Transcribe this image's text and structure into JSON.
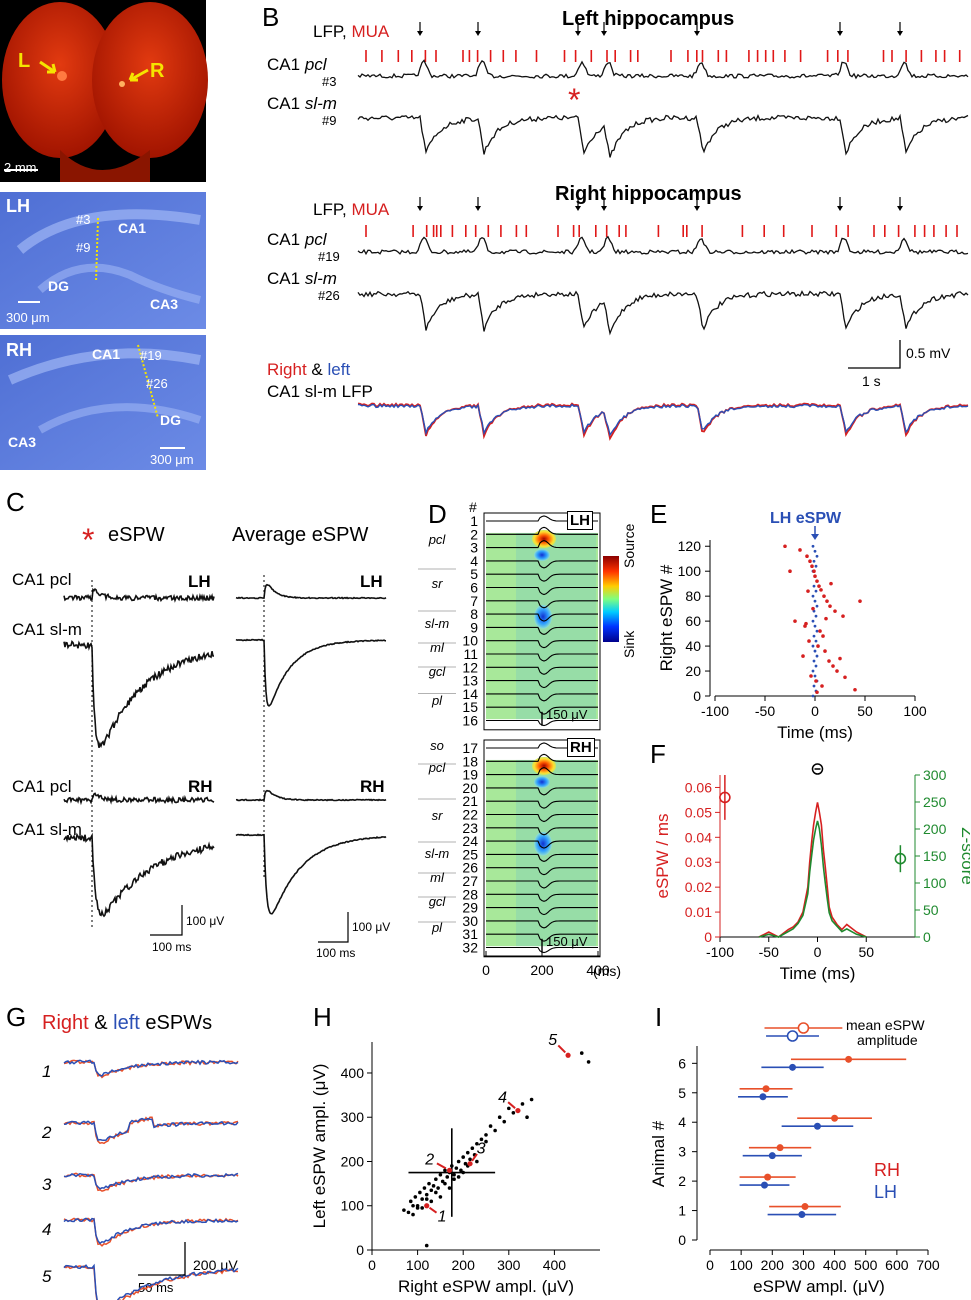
{
  "panel_letters": {
    "A": "A",
    "B": "B",
    "C": "C",
    "D": "D",
    "E": "E",
    "F": "F",
    "G": "G",
    "H": "H",
    "I": "I"
  },
  "panelA": {
    "brain_scalebar": "2 mm",
    "left_marker": "L",
    "right_marker": "R",
    "lh": {
      "title": "LH",
      "site1": "#3",
      "site2": "#9",
      "ca1": "CA1",
      "dg": "DG",
      "ca3": "CA3",
      "scalebar": "300 μm"
    },
    "rh": {
      "title": "RH",
      "ca1": "CA1",
      "site1": "#19",
      "site2": "#26",
      "dg": "DG",
      "ca3": "CA3",
      "scalebar": "300 μm"
    }
  },
  "panelB": {
    "left_title": "Left hippocampus",
    "right_title": "Right hippocampus",
    "lfp": "LFP,",
    "mua": "MUA",
    "ca1": "CA1",
    "pcl": "pcl",
    "slm": "sl-m",
    "left_ch_pcl": "#3",
    "left_ch_slm": "#9",
    "right_ch_pcl": "#19",
    "right_ch_slm": "#26",
    "scale_v": "0.5 mV",
    "scale_t": "1 s",
    "overlay_right": "Right",
    "overlay_amp": "&",
    "overlay_left": "left",
    "overlay_line2": "CA1 sl-m LFP",
    "asterisk": "*"
  },
  "panelC": {
    "asterisk": "*",
    "title_left": "eSPW",
    "title_right": "Average eSPW",
    "ca1_pcl": "CA1 pcl",
    "ca1_slm": "CA1 sl-m",
    "lh": "LH",
    "rh": "RH",
    "scale_v": "100 μV",
    "scale_t": "100 ms"
  },
  "panelD": {
    "hash": "#",
    "lh": "LH",
    "rh": "RH",
    "layers_lh": [
      "pcl",
      "sr",
      "sl-m",
      "ml",
      "gcl",
      "pl"
    ],
    "layers_rh": [
      "so",
      "pcl",
      "sr",
      "sl-m",
      "ml",
      "gcl",
      "pl"
    ],
    "channels_lh": [
      "1",
      "2",
      "3",
      "4",
      "5",
      "6",
      "7",
      "8",
      "9",
      "10",
      "11",
      "12",
      "13",
      "14",
      "15",
      "16"
    ],
    "channels_rh": [
      "17",
      "18",
      "19",
      "20",
      "21",
      "22",
      "23",
      "24",
      "25",
      "26",
      "27",
      "28",
      "29",
      "30",
      "31",
      "32"
    ],
    "colorbar_top": "Source",
    "colorbar_bottom": "Sink",
    "scalebar": "150 μV",
    "x_ticks": [
      "0",
      "200",
      "400"
    ],
    "x_unit": "(ms)"
  },
  "panelE": {
    "annotation": "LH eSPW",
    "chart_data": {
      "type": "scatter",
      "title": "",
      "xlabel": "Time (ms)",
      "ylabel": "Right eSPW #",
      "xlim": [
        -100,
        100
      ],
      "ylim": [
        0,
        125
      ],
      "x_ticks": [
        "-100",
        "-50",
        "0",
        "50",
        "100"
      ],
      "y_ticks": [
        "0",
        "20",
        "40",
        "60",
        "80",
        "100",
        "120"
      ],
      "series": [
        {
          "name": "Right eSPW",
          "x": [
            -30,
            -15,
            -8,
            -5,
            -3,
            -1,
            0,
            2,
            4,
            6,
            9,
            12,
            15,
            20,
            28,
            45,
            -20,
            -10,
            5,
            8,
            -6,
            3,
            10,
            -12,
            14,
            18,
            22,
            -4,
            1,
            7,
            -25,
            40,
            25,
            -2,
            11,
            16,
            -9,
            30,
            2,
            -7
          ],
          "y": [
            120,
            117,
            112,
            108,
            104,
            100,
            96,
            92,
            88,
            85,
            80,
            76,
            72,
            68,
            64,
            76,
            60,
            56,
            52,
            48,
            44,
            40,
            36,
            32,
            28,
            24,
            20,
            16,
            12,
            8,
            100,
            5,
            30,
            70,
            62,
            90,
            58,
            15,
            3,
            84
          ]
        }
      ]
    }
  },
  "panelF": {
    "chart_data": {
      "type": "line",
      "xlabel": "Time (ms)",
      "ylabel_left": "eSPW / ms",
      "ylabel_right": "Z-score",
      "xlim": [
        -100,
        100
      ],
      "ylim_left": [
        0,
        0.065
      ],
      "ylim_right": [
        0,
        300
      ],
      "x_ticks": [
        "-100",
        "-50",
        "0",
        "50"
      ],
      "y_ticks_left": [
        "0",
        "0.01",
        "0.02",
        "0.03",
        "0.04",
        "0.05",
        "0.06"
      ],
      "y_ticks_right": [
        "0",
        "50",
        "100",
        "150",
        "200",
        "250",
        "300"
      ],
      "x": [
        -60,
        -50,
        -40,
        -30,
        -25,
        -20,
        -15,
        -10,
        -8,
        -6,
        -4,
        -2,
        0,
        2,
        4,
        6,
        8,
        10,
        12,
        15,
        20,
        25,
        30,
        40,
        50
      ],
      "series": [
        {
          "name": "eSPW / ms",
          "values": [
            0,
            0.002,
            0,
            0.003,
            0.004,
            0.006,
            0.01,
            0.02,
            0.03,
            0.038,
            0.045,
            0.05,
            0.054,
            0.05,
            0.045,
            0.035,
            0.028,
            0.02,
            0.012,
            0.008,
            0.005,
            0.003,
            0.005,
            0.002,
            0
          ]
        },
        {
          "name": "Z-score",
          "values": [
            0,
            5,
            0,
            10,
            15,
            25,
            40,
            80,
            120,
            150,
            180,
            200,
            215,
            200,
            170,
            130,
            100,
            70,
            45,
            30,
            20,
            10,
            15,
            5,
            0
          ]
        }
      ],
      "mean_left": {
        "x": -95,
        "y": 0.056,
        "err": 0.009
      },
      "mean_right": {
        "x": 85,
        "y": 145,
        "err": 25
      }
    }
  },
  "panelG": {
    "title_right": "Right",
    "title_amp": "&",
    "title_left": "left",
    "title_rest": "eSPWs",
    "rows": [
      "1",
      "2",
      "3",
      "4",
      "5"
    ],
    "scale_v": "200 μV",
    "scale_t": "50 ms"
  },
  "panelH": {
    "labels": [
      "1",
      "2",
      "3",
      "4",
      "5"
    ],
    "chart_data": {
      "type": "scatter",
      "xlabel": "Right eSPW ampl. (μV)",
      "ylabel": "Left eSPW ampl. (μV)",
      "xlim": [
        0,
        500
      ],
      "ylim": [
        0,
        470
      ],
      "x_ticks": [
        "0",
        "100",
        "200",
        "300",
        "400"
      ],
      "y_ticks": [
        "0",
        "100",
        "200",
        "300",
        "400"
      ],
      "mean": {
        "x": 175,
        "y": 175,
        "xerr": 95,
        "yerr": 100
      },
      "series": [
        {
          "name": "events",
          "x": [
            70,
            80,
            85,
            90,
            95,
            100,
            105,
            110,
            115,
            120,
            125,
            130,
            135,
            140,
            145,
            150,
            155,
            160,
            165,
            170,
            175,
            180,
            185,
            190,
            195,
            200,
            205,
            210,
            215,
            220,
            225,
            230,
            240,
            250,
            260,
            270,
            280,
            290,
            300,
            310,
            320,
            330,
            340,
            350,
            430,
            460,
            475,
            100,
            120,
            140,
            160,
            180,
            200,
            150,
            130,
            110,
            90,
            170,
            190,
            210,
            230,
            250,
            120
          ],
          "y": [
            90,
            85,
            110,
            100,
            120,
            95,
            130,
            115,
            140,
            125,
            150,
            135,
            145,
            160,
            140,
            170,
            155,
            180,
            165,
            175,
            190,
            170,
            185,
            200,
            180,
            210,
            195,
            220,
            205,
            230,
            215,
            240,
            250,
            245,
            280,
            270,
            300,
            290,
            320,
            310,
            315,
            330,
            300,
            340,
            440,
            445,
            425,
            100,
            115,
            130,
            150,
            160,
            175,
            120,
            110,
            95,
            80,
            140,
            165,
            190,
            200,
            260,
            10
          ]
        },
        {
          "name": "highlighted",
          "x": [
            120,
            170,
            215,
            320,
            430
          ],
          "y": [
            100,
            180,
            195,
            315,
            440
          ]
        }
      ]
    }
  },
  "panelI": {
    "legend_label": "mean eSPW",
    "legend_label2": "amplitude",
    "rh": "RH",
    "lh": "LH",
    "chart_data": {
      "type": "errorbar",
      "xlabel": "eSPW ampl. (μV)",
      "ylabel": "Animal #",
      "xlim": [
        0,
        700
      ],
      "ylim": [
        0,
        7.2
      ],
      "x_ticks": [
        "0",
        "100",
        "200",
        "300",
        "400",
        "500",
        "600",
        "700"
      ],
      "y_ticks": [
        "0",
        "1",
        "2",
        "3",
        "4",
        "5",
        "6"
      ],
      "series": [
        {
          "name": "RH",
          "animals": [
            1,
            2,
            3,
            4,
            5,
            6
          ],
          "mean": [
            305,
            185,
            225,
            400,
            180,
            445
          ],
          "sd": [
            115,
            90,
            100,
            120,
            85,
            185
          ]
        },
        {
          "name": "LH",
          "animals": [
            1,
            2,
            3,
            4,
            5,
            6
          ],
          "mean": [
            295,
            175,
            200,
            345,
            170,
            265
          ],
          "sd": [
            110,
            80,
            95,
            115,
            80,
            100
          ]
        }
      ],
      "overall_mean": {
        "RH": {
          "mean": 300,
          "sd": 125
        },
        "LH": {
          "mean": 265,
          "sd": 85
        }
      }
    }
  }
}
